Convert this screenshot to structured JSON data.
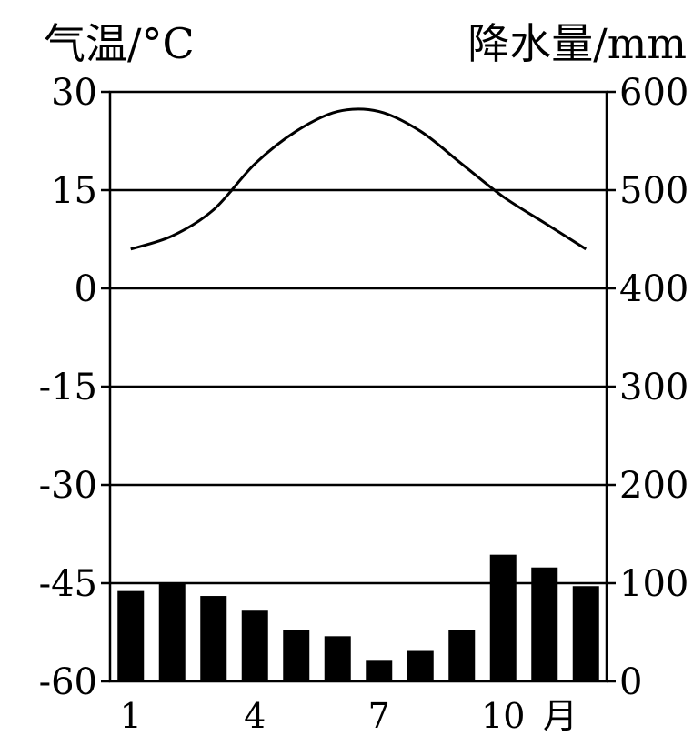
{
  "chart_data": {
    "type": "bar",
    "left_title": "气温/°C",
    "right_title": "降水量/mm",
    "unit_label": "月",
    "x": {
      "months": [
        1,
        2,
        3,
        4,
        5,
        6,
        7,
        8,
        9,
        10,
        11,
        12
      ],
      "tick_labels": [
        "1",
        "4",
        "7",
        "10"
      ],
      "tick_months": [
        1,
        4,
        7,
        10
      ]
    },
    "temperature_axis": {
      "min": -60,
      "max": 30,
      "ticks": [
        "30",
        "15",
        "0",
        "-15",
        "-30",
        "-45",
        "-60"
      ],
      "tick_values": [
        30,
        15,
        0,
        -15,
        -30,
        -45,
        -60
      ]
    },
    "precipitation_axis": {
      "min": 0,
      "max": 600,
      "ticks": [
        "600",
        "500",
        "400",
        "300",
        "200",
        "100",
        "0"
      ],
      "tick_values": [
        600,
        500,
        400,
        300,
        200,
        100,
        0
      ]
    },
    "gridlines_at_temperature": [
      15,
      0,
      -15,
      -30,
      -45
    ],
    "series": [
      {
        "type": "line",
        "axis": "left",
        "values": [
          6,
          8,
          12,
          19,
          24,
          27,
          27,
          24,
          19,
          14,
          10,
          6
        ]
      },
      {
        "type": "bar",
        "axis": "right",
        "values": [
          92,
          100,
          87,
          72,
          52,
          46,
          21,
          31,
          52,
          129,
          116,
          97
        ]
      }
    ],
    "colors": {
      "line": "#000000",
      "bar": "#000000",
      "grid": "#000000"
    }
  }
}
